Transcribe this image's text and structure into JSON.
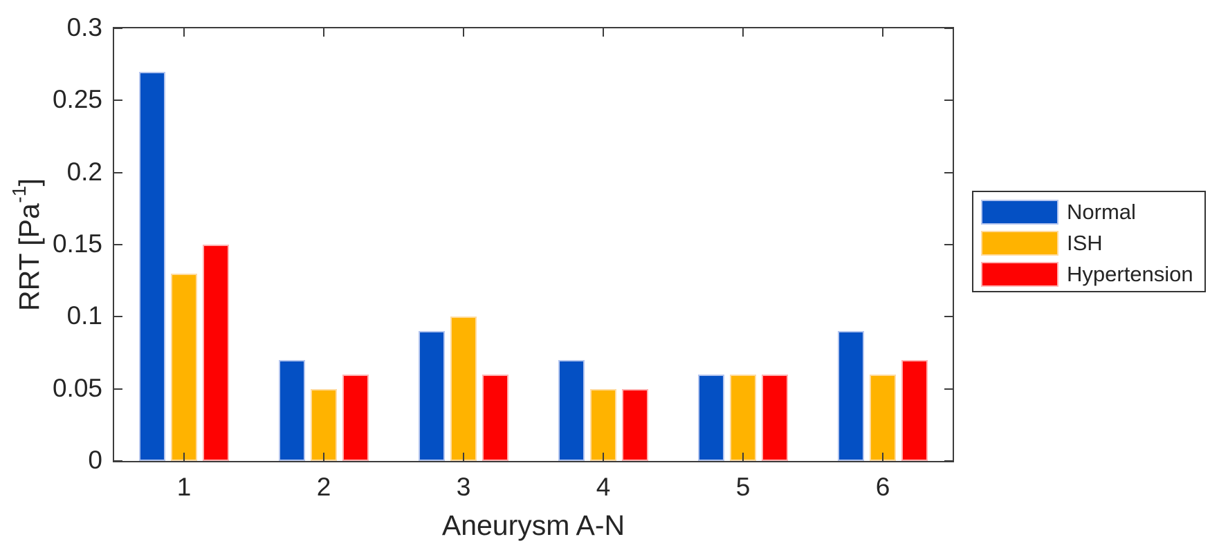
{
  "figure": {
    "background_color": "#ffffff",
    "axis_line_color": "#3c3c3c",
    "text_color": "#252525"
  },
  "chart_data": {
    "type": "bar",
    "title": "",
    "xlabel": "Aneurysm A-N",
    "ylabel": "RRT [Pa⁻¹]",
    "ylabel_parts": {
      "pre": "RRT [Pa",
      "sup": "-1",
      "post": "]"
    },
    "categories": [
      "1",
      "2",
      "3",
      "4",
      "5",
      "6"
    ],
    "series": [
      {
        "name": "Normal",
        "color": "#0450c4",
        "edge_color": "#b5c6ef",
        "values": [
          0.27,
          0.07,
          0.09,
          0.07,
          0.06,
          0.09
        ]
      },
      {
        "name": "ISH",
        "color": "#ffb300",
        "edge_color": "#ffdca0",
        "values": [
          0.13,
          0.05,
          0.1,
          0.05,
          0.06,
          0.06
        ]
      },
      {
        "name": "Hypertension",
        "color": "#fe0202",
        "edge_color": "#ffb2b2",
        "values": [
          0.15,
          0.06,
          0.06,
          0.05,
          0.06,
          0.07
        ]
      }
    ],
    "ylim": [
      0,
      0.3
    ],
    "yticks": [
      0,
      0.05,
      0.1,
      0.15,
      0.2,
      0.25,
      0.3
    ],
    "ytick_labels": [
      "0",
      "0.05",
      "0.1",
      "0.15",
      "0.2",
      "0.25",
      "0.3"
    ],
    "grid": false,
    "legend_position": "right-outside",
    "legend_entries": [
      "Normal",
      "ISH",
      "Hypertension"
    ]
  }
}
